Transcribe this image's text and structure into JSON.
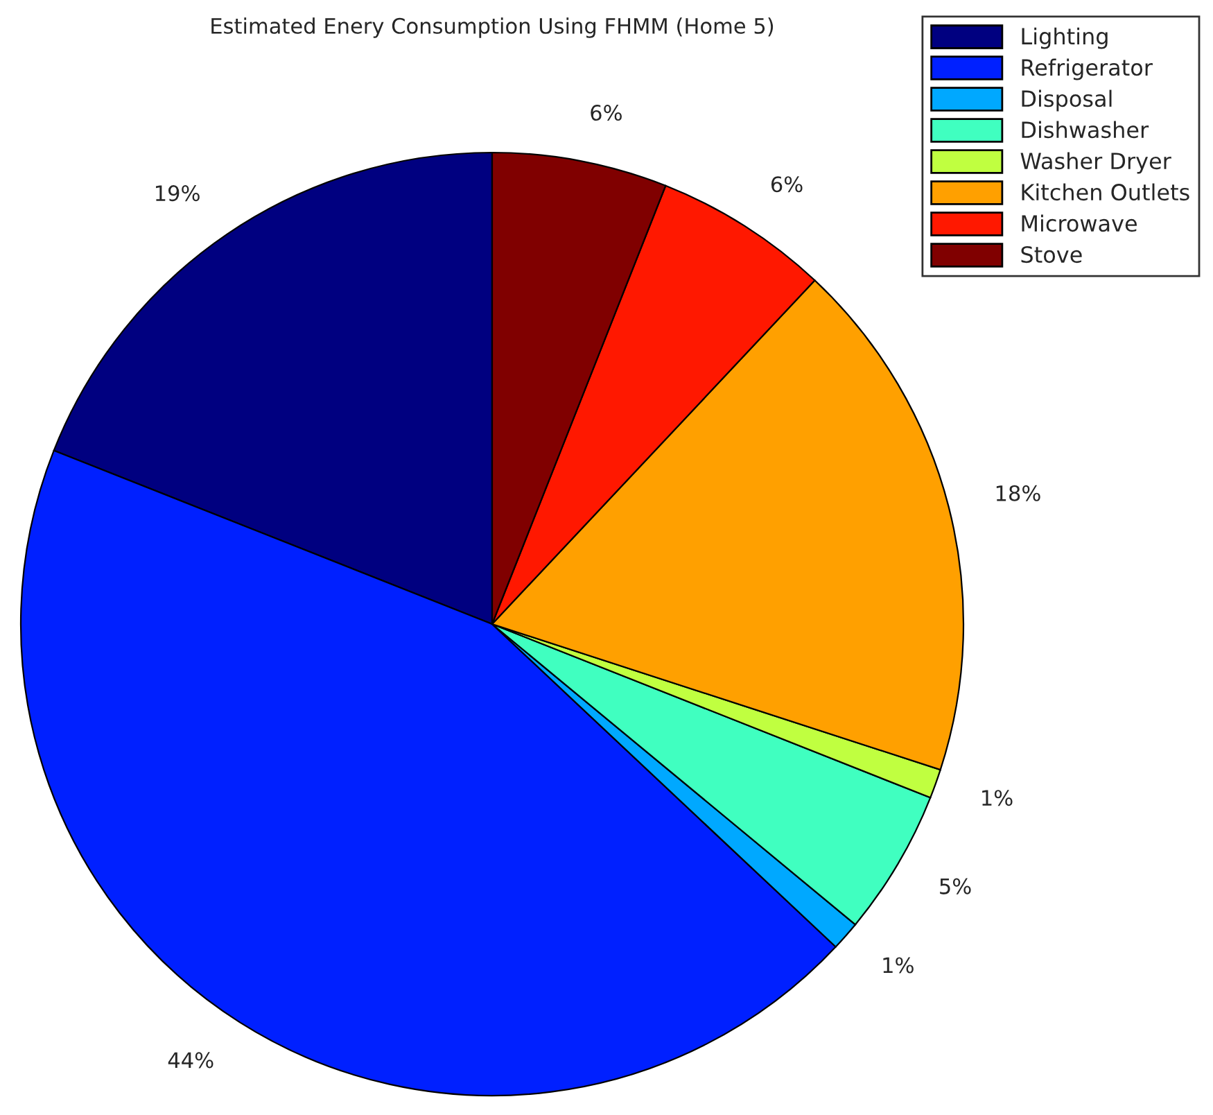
{
  "chart_data": {
    "type": "pie",
    "title": "Estimated Enery Consumption Using FHMM (Home 5)",
    "categories": [
      "Lighting",
      "Refrigerator",
      "Disposal",
      "Dishwasher",
      "Washer Dryer",
      "Kitchen Outlets",
      "Microwave",
      "Stove"
    ],
    "values": [
      19,
      44,
      1,
      5,
      1,
      18,
      6,
      6
    ],
    "value_labels": [
      "19%",
      "44%",
      "1%",
      "5%",
      "1%",
      "18%",
      "6%",
      "6%"
    ],
    "colors": [
      "#000080",
      "#0020ff",
      "#00a8ff",
      "#40ffc0",
      "#c0ff40",
      "#ffa000",
      "#ff1800",
      "#800000"
    ],
    "legend": "top right"
  }
}
